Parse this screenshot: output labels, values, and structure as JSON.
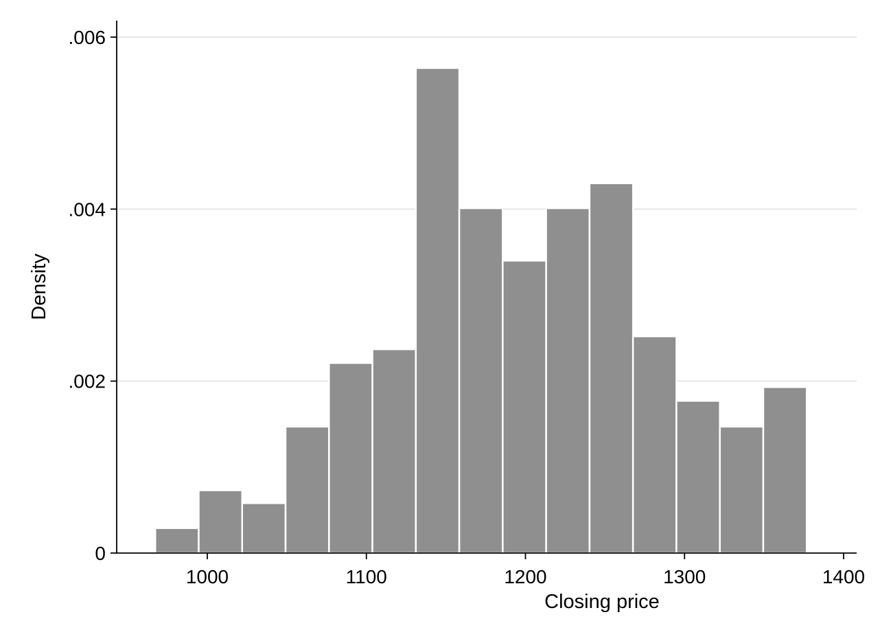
{
  "chart_data": {
    "type": "bar",
    "subtype": "histogram",
    "title": "",
    "xlabel": "Closing price",
    "ylabel": "Density",
    "xlim": [
      950,
      1400
    ],
    "ylim": [
      0,
      0.006
    ],
    "x_ticks": [
      {
        "value": 1000,
        "label": "1000"
      },
      {
        "value": 1100,
        "label": "1100"
      },
      {
        "value": 1200,
        "label": "1200"
      },
      {
        "value": 1300,
        "label": "1300"
      },
      {
        "value": 1400,
        "label": "1400"
      }
    ],
    "y_ticks": [
      {
        "value": 0,
        "label": "0"
      },
      {
        "value": 0.002,
        "label": ".002"
      },
      {
        "value": 0.004,
        "label": ".004"
      },
      {
        "value": 0.006,
        "label": ".006"
      }
    ],
    "grid": true,
    "legend": "none",
    "colors": {
      "bar_fill": "#8f8f8f",
      "grid": "#e6e6e6"
    },
    "bins": [
      {
        "start": 967.3,
        "end": 994.6,
        "density": 0.00029
      },
      {
        "start": 994.6,
        "end": 1021.9,
        "density": 0.00073
      },
      {
        "start": 1021.9,
        "end": 1049.2,
        "density": 0.00058
      },
      {
        "start": 1049.2,
        "end": 1076.5,
        "density": 0.00147
      },
      {
        "start": 1076.5,
        "end": 1103.8,
        "density": 0.00221
      },
      {
        "start": 1103.8,
        "end": 1131.1,
        "density": 0.00237
      },
      {
        "start": 1131.1,
        "end": 1158.4,
        "density": 0.00564
      },
      {
        "start": 1158.4,
        "end": 1185.7,
        "density": 0.00401
      },
      {
        "start": 1185.7,
        "end": 1213.0,
        "density": 0.0034
      },
      {
        "start": 1213.0,
        "end": 1240.3,
        "density": 0.00401
      },
      {
        "start": 1240.3,
        "end": 1267.6,
        "density": 0.0043
      },
      {
        "start": 1267.6,
        "end": 1294.9,
        "density": 0.00252
      },
      {
        "start": 1294.9,
        "end": 1322.2,
        "density": 0.00177
      },
      {
        "start": 1322.2,
        "end": 1349.5,
        "density": 0.00147
      },
      {
        "start": 1349.5,
        "end": 1376.8,
        "density": 0.00193
      }
    ]
  }
}
